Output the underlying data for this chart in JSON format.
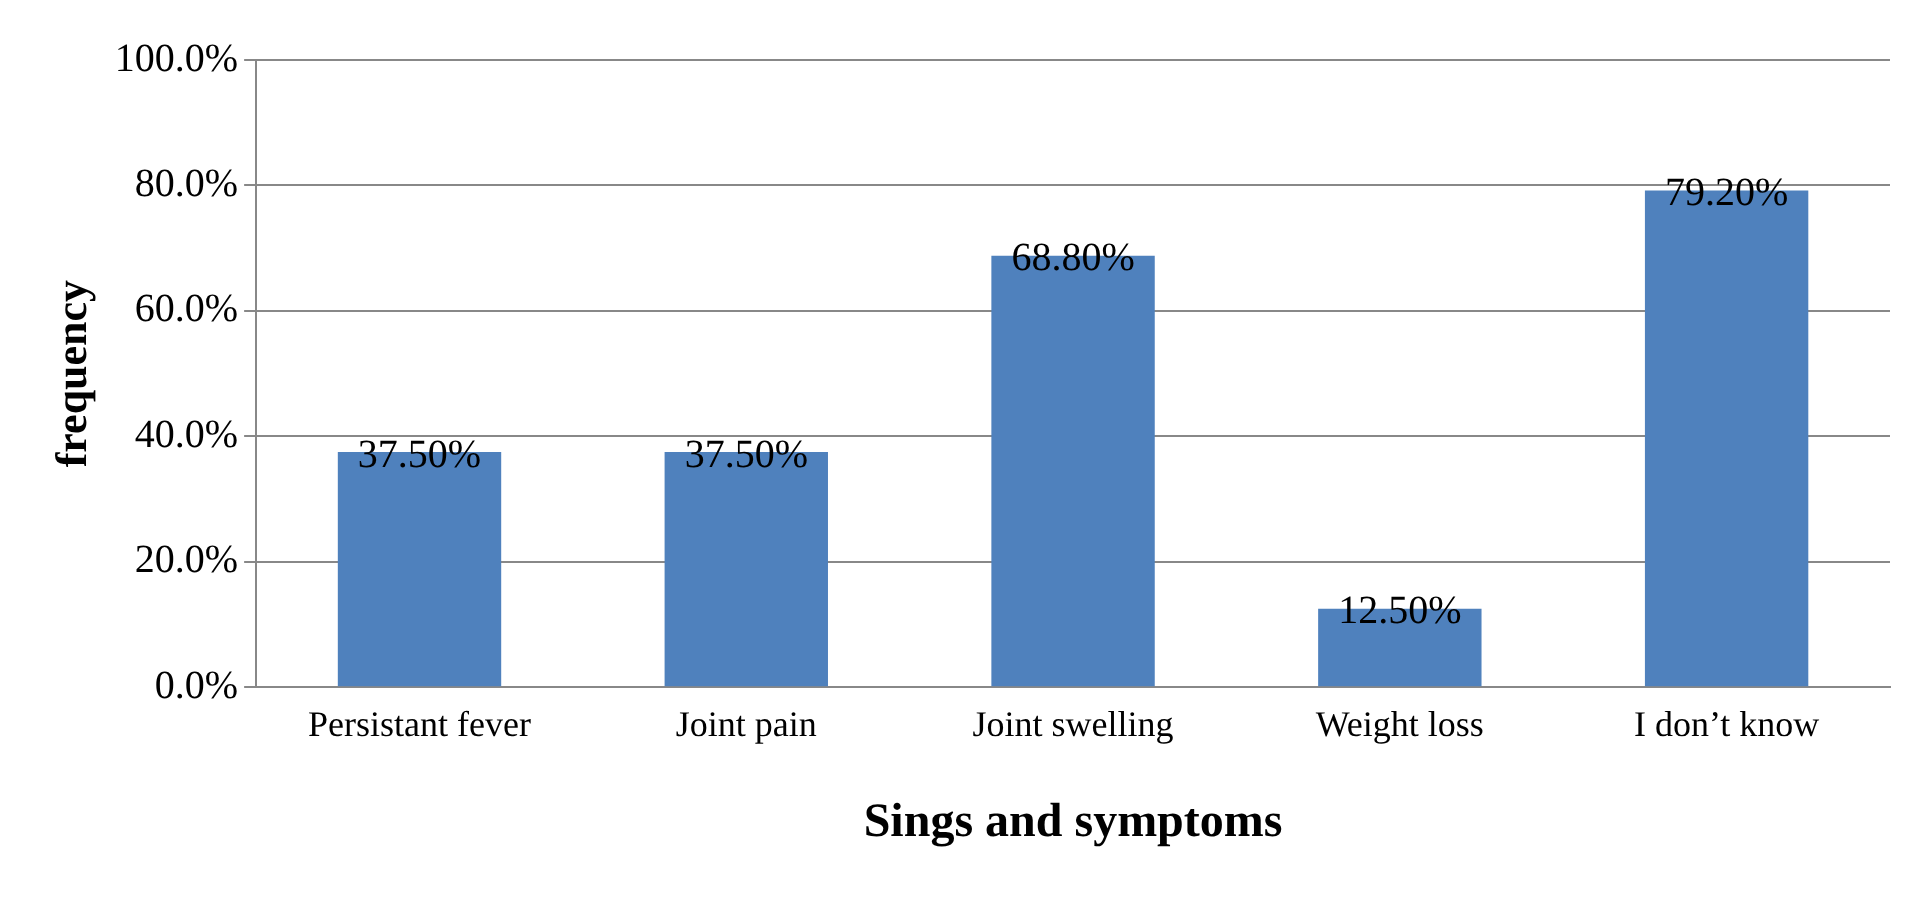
{
  "chart_data": {
    "type": "bar",
    "xlabel": "Sings and symptoms",
    "ylabel": "frequency",
    "categories": [
      "Persistant fever",
      "Joint pain",
      "Joint swelling",
      "Weight loss",
      "I don’t know"
    ],
    "values": [
      37.5,
      37.5,
      68.8,
      12.5,
      79.2
    ],
    "value_labels": [
      "37.50%",
      "37.50%",
      "68.80%",
      "12.50%",
      "79.20%"
    ],
    "color": "#4f81bd",
    "ylim": [
      0,
      100
    ],
    "yticks": [
      {
        "value": 0,
        "label": "0.0%"
      },
      {
        "value": 20,
        "label": "20.0%"
      },
      {
        "value": 40,
        "label": "40.0%"
      },
      {
        "value": 60,
        "label": "60.0%"
      },
      {
        "value": 80,
        "label": "80.0%"
      },
      {
        "value": 100,
        "label": "100.0%"
      }
    ],
    "grid": "y",
    "legend": false
  }
}
